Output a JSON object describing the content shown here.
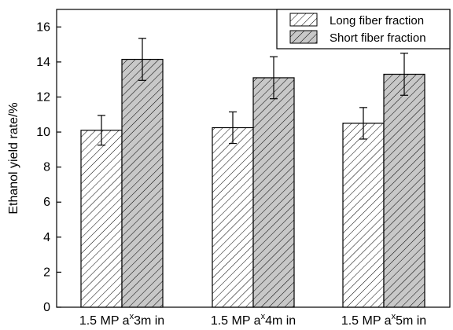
{
  "chart_data": {
    "type": "bar",
    "title": "",
    "xlabel": "",
    "ylabel": "Ethanol yield rate/%",
    "ylim": [
      0,
      17
    ],
    "yticks": [
      0,
      2,
      4,
      6,
      8,
      10,
      12,
      14,
      16
    ],
    "grid": false,
    "legend_position": "top-right",
    "categories": [
      {
        "prefix": "1.5 MP a",
        "sup": "x",
        "suffix": "3m in"
      },
      {
        "prefix": "1.5 MP a",
        "sup": "x",
        "suffix": "4m in"
      },
      {
        "prefix": "1.5 MP a",
        "sup": "x",
        "suffix": "5m in"
      }
    ],
    "series": [
      {
        "name": "Long fiber fraction",
        "values": [
          10.1,
          10.25,
          10.5
        ],
        "errors": [
          0.85,
          0.9,
          0.9
        ],
        "fill": "#ffffff",
        "hatch": "#000000"
      },
      {
        "name": "Short fiber fraction",
        "values": [
          14.15,
          13.1,
          13.3
        ],
        "errors": [
          1.2,
          1.2,
          1.2
        ],
        "fill": "#c8c8c8",
        "hatch": "#000000"
      }
    ]
  }
}
